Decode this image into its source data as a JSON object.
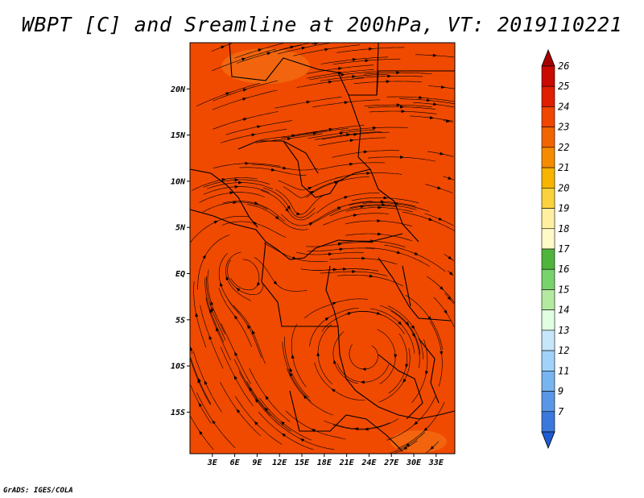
{
  "title": "WBPT [C] and Sreamline at 200hPa, VT: 2019110221",
  "credit": "GrADS: IGES/COLA",
  "map": {
    "fill_color": "#f04a00",
    "warm_patch_color": "#f26a10",
    "line_color": "#000000"
  },
  "axes": {
    "lat_labels": [
      "20N",
      "15N",
      "10N",
      "5N",
      "EQ",
      "5S",
      "10S",
      "15S"
    ],
    "lat_values": [
      20,
      15,
      10,
      5,
      0,
      -5,
      -10,
      -15
    ],
    "lon_labels": [
      "3E",
      "6E",
      "9E",
      "12E",
      "15E",
      "18E",
      "21E",
      "24E",
      "27E",
      "30E",
      "33E"
    ],
    "lon_values": [
      3,
      6,
      9,
      12,
      15,
      18,
      21,
      24,
      27,
      30,
      33
    ],
    "lon_range": [
      0,
      35.5
    ],
    "lat_range": [
      -19.5,
      25
    ]
  },
  "colorbar": {
    "labels": [
      "26",
      "25",
      "24",
      "23",
      "22",
      "21",
      "20",
      "19",
      "18",
      "17",
      "16",
      "15",
      "14",
      "13",
      "12",
      "11",
      "9",
      "7"
    ],
    "colors": [
      "#a50000",
      "#c80a00",
      "#e01e00",
      "#f04600",
      "#f26400",
      "#f58c00",
      "#f7b400",
      "#fad23c",
      "#fff0a0",
      "#fffac8",
      "#50b43c",
      "#78d26e",
      "#b4eaa0",
      "#e1ffe1",
      "#c8e6fa",
      "#a0d2fa",
      "#78b4f0",
      "#5a96e6",
      "#3c78dc",
      "#1e5ad2"
    ]
  }
}
